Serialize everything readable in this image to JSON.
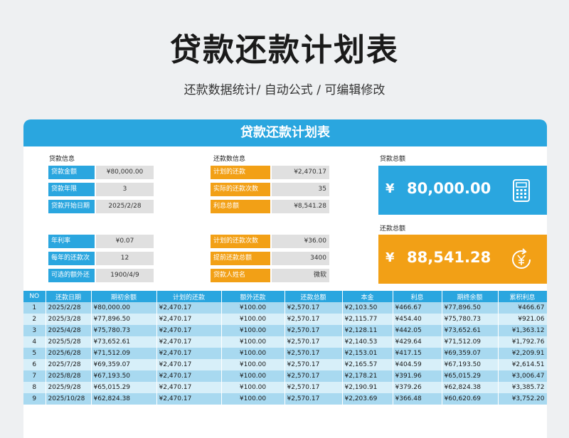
{
  "page": {
    "title": "贷款还款计划表",
    "subtitle": "还款数据统计/ 自动公式 / 可编辑修改"
  },
  "card": {
    "title": "贷款还款计划表"
  },
  "loan_info": {
    "label": "贷款信息",
    "fields": [
      {
        "label": "贷款金额",
        "value": "¥80,000.00"
      },
      {
        "label": "贷款年限",
        "value": "3"
      },
      {
        "label": "贷款开始日期",
        "value": "2025/2/28"
      },
      {
        "label": "年利率",
        "value": "¥0.07"
      },
      {
        "label": "每年的还款次数",
        "value": "12"
      },
      {
        "label": "可选的额外还款",
        "value": "1900/4/9"
      }
    ]
  },
  "repay_info": {
    "label": "还款数信息",
    "fields": [
      {
        "label": "计划的还款",
        "value": "¥2,470.17"
      },
      {
        "label": "实际的还款次数",
        "value": "35"
      },
      {
        "label": "利息总额",
        "value": "¥8,541.28"
      },
      {
        "label": "计划的还款次数",
        "value": "¥36.00"
      },
      {
        "label": "提前还款总额",
        "value": "3400"
      },
      {
        "label": "贷款人姓名",
        "value": "微软"
      }
    ]
  },
  "loan_total": {
    "label": "贷款总额",
    "symbol": "¥",
    "value": "80,000.00",
    "icon": "calculator-icon"
  },
  "repay_total": {
    "label": "还款总额",
    "symbol": "¥",
    "value": "88,541.28",
    "icon": "yen-cycle-icon"
  },
  "colors": {
    "blue": "#2aa6df",
    "orange": "#f2a016"
  },
  "table": {
    "headers": [
      "NO",
      "还款日期",
      "期初余额",
      "计划的还款",
      "额外还款",
      "还款总额",
      "本金",
      "利息",
      "期终余额",
      "累积利息"
    ],
    "rows": [
      [
        "1",
        "2025/2/28",
        "¥80,000.00",
        "¥2,470.17",
        "¥100.00",
        "¥2,570.17",
        "¥2,103.50",
        "¥466.67",
        "¥77,896.50",
        "¥466.67"
      ],
      [
        "2",
        "2025/3/28",
        "¥77,896.50",
        "¥2,470.17",
        "¥100.00",
        "¥2,570.17",
        "¥2,115.77",
        "¥454.40",
        "¥75,780.73",
        "¥921.06"
      ],
      [
        "3",
        "2025/4/28",
        "¥75,780.73",
        "¥2,470.17",
        "¥100.00",
        "¥2,570.17",
        "¥2,128.11",
        "¥442.05",
        "¥73,652.61",
        "¥1,363.12"
      ],
      [
        "4",
        "2025/5/28",
        "¥73,652.61",
        "¥2,470.17",
        "¥100.00",
        "¥2,570.17",
        "¥2,140.53",
        "¥429.64",
        "¥71,512.09",
        "¥1,792.76"
      ],
      [
        "5",
        "2025/6/28",
        "¥71,512.09",
        "¥2,470.17",
        "¥100.00",
        "¥2,570.17",
        "¥2,153.01",
        "¥417.15",
        "¥69,359.07",
        "¥2,209.91"
      ],
      [
        "6",
        "2025/7/28",
        "¥69,359.07",
        "¥2,470.17",
        "¥100.00",
        "¥2,570.17",
        "¥2,165.57",
        "¥404.59",
        "¥67,193.50",
        "¥2,614.51"
      ],
      [
        "7",
        "2025/8/28",
        "¥67,193.50",
        "¥2,470.17",
        "¥100.00",
        "¥2,570.17",
        "¥2,178.21",
        "¥391.96",
        "¥65,015.29",
        "¥3,006.47"
      ],
      [
        "8",
        "2025/9/28",
        "¥65,015.29",
        "¥2,470.17",
        "¥100.00",
        "¥2,570.17",
        "¥2,190.91",
        "¥379.26",
        "¥62,824.38",
        "¥3,385.72"
      ],
      [
        "9",
        "2025/10/28",
        "¥62,824.38",
        "¥2,470.17",
        "¥100.00",
        "¥2,570.17",
        "¥2,203.69",
        "¥366.48",
        "¥60,620.69",
        "¥3,752.20"
      ]
    ]
  }
}
